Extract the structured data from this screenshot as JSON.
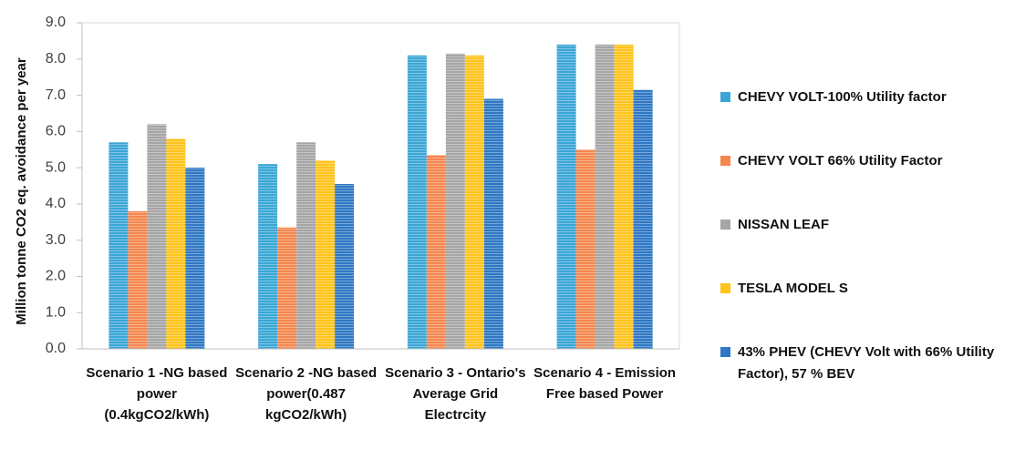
{
  "chart_data": {
    "type": "bar",
    "ylabel": "Million  tonne CO2 eq.  avoidance per year",
    "categories": [
      "Scenario 1 -NG based power (0.4kgCO2/kWh)",
      "Scenario 2 -NG based power(0.487 kgCO2/kWh)",
      "Scenario 3 - Ontario's Average Grid Electrcity",
      "Scenario 4 - Emission Free based Power"
    ],
    "series": [
      {
        "name": "CHEVY VOLT-100% Utility factor",
        "color": "#3ba6d6",
        "values": [
          5.7,
          5.1,
          8.1,
          8.4
        ]
      },
      {
        "name": "CHEVY VOLT 66% Utility Factor",
        "color": "#f4874f",
        "values": [
          3.8,
          3.35,
          5.35,
          5.5
        ]
      },
      {
        "name": "NISSAN LEAF",
        "color": "#a6a6a6",
        "values": [
          6.2,
          5.7,
          8.15,
          8.4
        ]
      },
      {
        "name": "TESLA MODEL S",
        "color": "#ffc31a",
        "values": [
          5.8,
          5.2,
          8.1,
          8.4
        ]
      },
      {
        "name": "43% PHEV (CHEVY Volt with 66% Utility Factor), 57 % BEV",
        "color": "#2f78c4",
        "values": [
          5.0,
          4.55,
          6.9,
          7.15
        ]
      }
    ],
    "ylim": [
      0,
      9
    ],
    "yticks": [
      {
        "value": 0,
        "label": "0.0"
      },
      {
        "value": 1,
        "label": "1.0"
      },
      {
        "value": 2,
        "label": "2.0"
      },
      {
        "value": 3,
        "label": "3.0"
      },
      {
        "value": 4,
        "label": "4.0"
      },
      {
        "value": 5,
        "label": "5.0"
      },
      {
        "value": 6,
        "label": "6.0"
      },
      {
        "value": 7,
        "label": "7.0"
      },
      {
        "value": 8,
        "label": "8.0"
      },
      {
        "value": 9,
        "label": "9.0"
      }
    ],
    "legend": "right"
  }
}
